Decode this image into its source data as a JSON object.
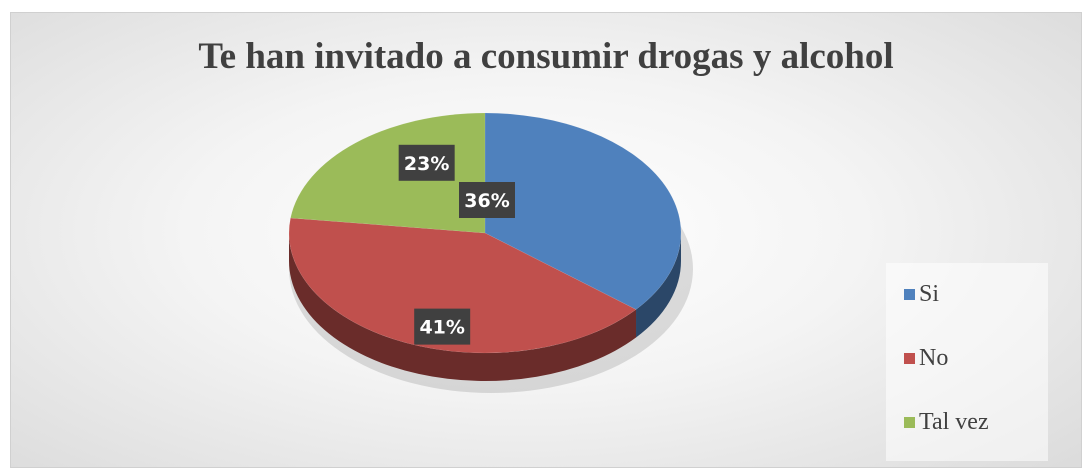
{
  "chart_data": {
    "type": "pie",
    "title": "Te han invitado a consumir drogas y alcohol",
    "categories": [
      "Si",
      "No",
      "Tal vez"
    ],
    "values": [
      36,
      41,
      23
    ],
    "value_labels": [
      "36%",
      "41%",
      "23%"
    ],
    "colors": [
      "#4f81bd",
      "#c0504d",
      "#9bbb59"
    ],
    "legend_position": "right"
  }
}
